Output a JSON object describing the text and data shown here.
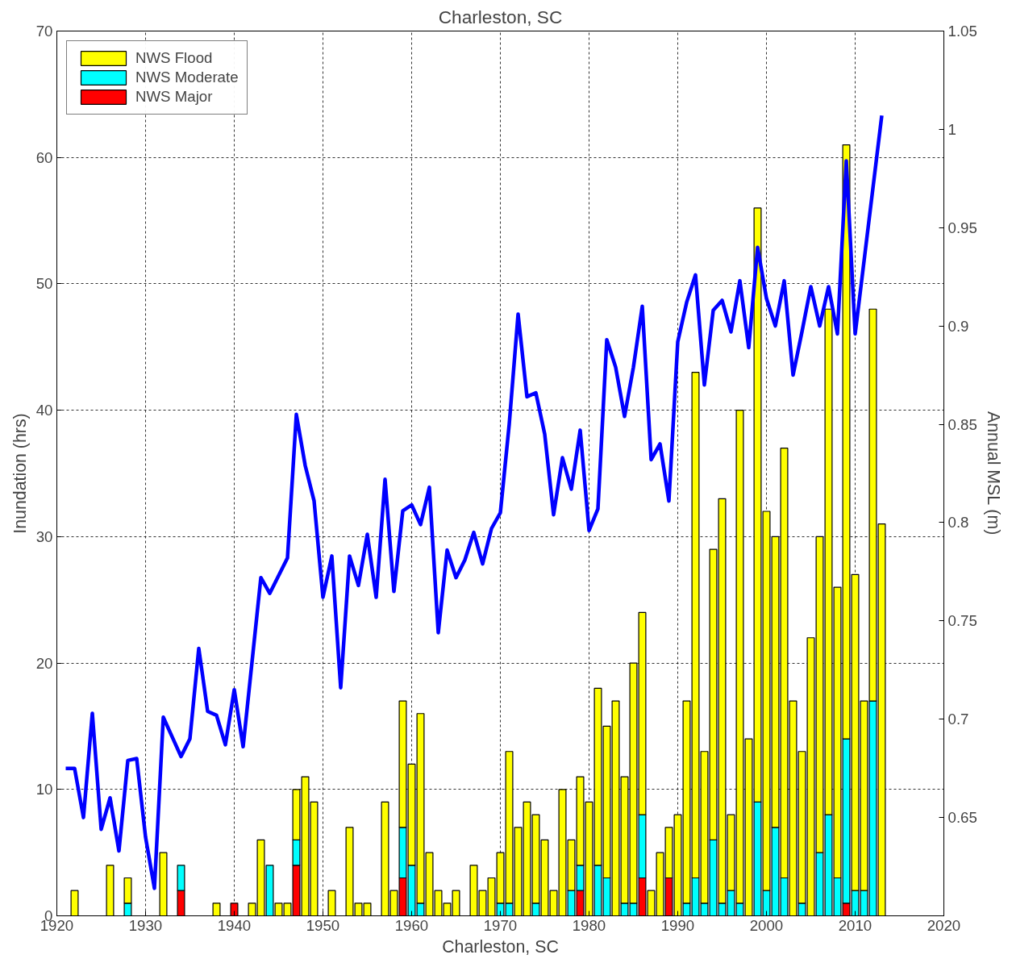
{
  "chart_data": {
    "type": "bar",
    "stacked": true,
    "title": "Charleston, SC",
    "xlabel": "Charleston, SC",
    "ylabel": "Inundation (hrs)",
    "y2label": "Annual MSL (m)",
    "xlim": [
      1920,
      2020
    ],
    "xticks": [
      1920,
      1930,
      1940,
      1950,
      1960,
      1970,
      1980,
      1990,
      2000,
      2010,
      2020
    ],
    "ylim": [
      0,
      70
    ],
    "yticks": [
      0,
      10,
      20,
      30,
      40,
      50,
      60,
      70
    ],
    "y2lim": [
      0.6,
      1.05
    ],
    "y2ticks": [
      0.65,
      0.7,
      0.75,
      0.8,
      0.85,
      0.9,
      0.95,
      1,
      1.05
    ],
    "grid": true,
    "legend": "top left",
    "line_style": "solid",
    "marker": "none",
    "x": [
      1921,
      1922,
      1923,
      1924,
      1925,
      1926,
      1927,
      1928,
      1929,
      1930,
      1931,
      1932,
      1933,
      1934,
      1935,
      1936,
      1937,
      1938,
      1939,
      1940,
      1941,
      1942,
      1943,
      1944,
      1945,
      1946,
      1947,
      1948,
      1949,
      1950,
      1951,
      1952,
      1953,
      1954,
      1955,
      1956,
      1957,
      1958,
      1959,
      1960,
      1961,
      1962,
      1963,
      1964,
      1965,
      1966,
      1967,
      1968,
      1969,
      1970,
      1971,
      1972,
      1973,
      1974,
      1975,
      1976,
      1977,
      1978,
      1979,
      1980,
      1981,
      1982,
      1983,
      1984,
      1985,
      1986,
      1987,
      1988,
      1989,
      1990,
      1991,
      1992,
      1993,
      1994,
      1995,
      1996,
      1997,
      1998,
      1999,
      2000,
      2001,
      2002,
      2003,
      2004,
      2005,
      2006,
      2007,
      2008,
      2009,
      2010,
      2011,
      2012,
      2013
    ],
    "series": [
      {
        "name": "NWS Major",
        "color": "#ff0000",
        "values": [
          null,
          null,
          null,
          null,
          null,
          null,
          null,
          null,
          null,
          null,
          null,
          null,
          null,
          2,
          null,
          null,
          null,
          null,
          null,
          1,
          null,
          null,
          null,
          null,
          null,
          null,
          4,
          null,
          null,
          null,
          null,
          null,
          null,
          null,
          null,
          null,
          null,
          null,
          3,
          null,
          null,
          null,
          null,
          null,
          null,
          null,
          null,
          null,
          null,
          null,
          null,
          null,
          null,
          null,
          null,
          null,
          null,
          null,
          2,
          null,
          null,
          null,
          null,
          null,
          null,
          3,
          null,
          null,
          3,
          null,
          null,
          null,
          null,
          null,
          null,
          null,
          null,
          null,
          null,
          null,
          null,
          null,
          null,
          null,
          null,
          null,
          null,
          null,
          1,
          null,
          null,
          null,
          null
        ]
      },
      {
        "name": "NWS Moderate",
        "color": "#00ffff",
        "values": [
          null,
          null,
          null,
          null,
          null,
          null,
          null,
          1,
          null,
          null,
          null,
          null,
          null,
          2,
          null,
          null,
          null,
          null,
          null,
          null,
          null,
          null,
          null,
          4,
          null,
          null,
          2,
          null,
          null,
          null,
          null,
          null,
          null,
          null,
          null,
          null,
          null,
          null,
          4,
          4,
          1,
          null,
          null,
          null,
          null,
          null,
          null,
          null,
          null,
          1,
          1,
          null,
          null,
          1,
          null,
          null,
          null,
          2,
          2,
          null,
          4,
          3,
          null,
          1,
          1,
          5,
          null,
          null,
          null,
          null,
          1,
          3,
          1,
          6,
          1,
          2,
          1,
          null,
          9,
          2,
          7,
          3,
          null,
          1,
          null,
          5,
          8,
          3,
          13,
          2,
          2,
          17,
          null
        ]
      },
      {
        "name": "NWS Flood",
        "color": "#ffff00",
        "values": [
          null,
          2,
          null,
          null,
          null,
          4,
          null,
          2,
          null,
          null,
          null,
          5,
          null,
          null,
          null,
          null,
          null,
          1,
          null,
          null,
          null,
          1,
          6,
          null,
          1,
          1,
          4,
          11,
          9,
          null,
          2,
          null,
          7,
          1,
          1,
          null,
          9,
          2,
          10,
          8,
          15,
          5,
          2,
          1,
          2,
          null,
          4,
          2,
          3,
          4,
          12,
          7,
          9,
          7,
          6,
          2,
          10,
          4,
          7,
          9,
          14,
          12,
          17,
          10,
          19,
          16,
          2,
          5,
          4,
          8,
          16,
          40,
          12,
          23,
          32,
          6,
          39,
          14,
          47,
          30,
          23,
          34,
          17,
          12,
          22,
          25,
          40,
          23,
          47,
          25,
          15,
          31,
          31
        ]
      },
      {
        "type": "line",
        "axis": "y2",
        "color": "#0000ff",
        "values": [
          0.675,
          0.675,
          0.65,
          0.703,
          0.644,
          0.66,
          0.633,
          0.679,
          0.68,
          0.64,
          0.614,
          0.701,
          0.691,
          0.681,
          0.69,
          0.736,
          0.704,
          0.702,
          0.687,
          0.715,
          0.686,
          0.729,
          0.772,
          0.764,
          0.773,
          0.782,
          0.855,
          0.829,
          0.811,
          0.762,
          0.783,
          0.716,
          0.783,
          0.768,
          0.794,
          0.762,
          0.822,
          0.765,
          0.806,
          0.809,
          0.799,
          0.818,
          0.744,
          0.786,
          0.772,
          0.781,
          0.795,
          0.779,
          0.797,
          0.805,
          0.85,
          0.906,
          0.864,
          0.866,
          0.845,
          0.804,
          0.833,
          0.817,
          0.847,
          0.796,
          0.807,
          0.893,
          0.879,
          0.854,
          0.879,
          0.91,
          0.832,
          0.84,
          0.811,
          0.892,
          0.912,
          0.926,
          0.87,
          0.908,
          0.913,
          0.897,
          0.923,
          0.889,
          0.94,
          0.914,
          0.9,
          0.923,
          0.875,
          0.897,
          0.92,
          0.9,
          0.92,
          0.896,
          0.984,
          0.896,
          0.933,
          0.97,
          1.007
        ]
      }
    ]
  }
}
